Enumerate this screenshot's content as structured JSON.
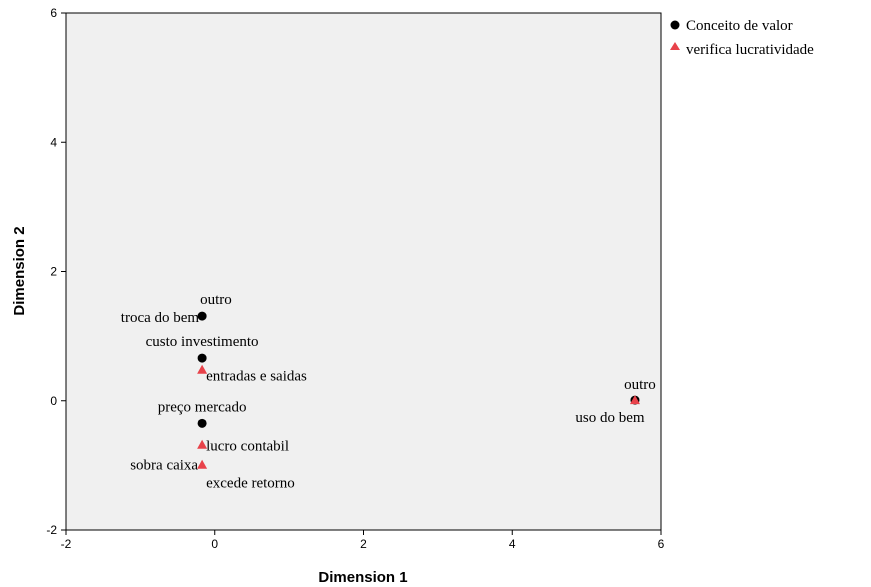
{
  "chart_data": {
    "type": "scatter",
    "xlabel": "Dimension 1",
    "ylabel": "Dimension 2",
    "xlim": [
      -2,
      6
    ],
    "ylim": [
      -2,
      6
    ],
    "xticks": [
      -2,
      0,
      2,
      4,
      6
    ],
    "yticks": [
      -2,
      0,
      2,
      4,
      6
    ],
    "grid": false,
    "legend_position": "top-right",
    "series": [
      {
        "name": "Conceito de valor",
        "marker": "circle",
        "color": "#000000",
        "points": [
          {
            "label": "outro",
            "x": -0.17,
            "y": 1.31
          },
          {
            "label": "troca do bem",
            "x": -0.17,
            "y": 1.31
          },
          {
            "label": "custo investimento",
            "x": -0.17,
            "y": 0.66
          },
          {
            "label": "preço mercado",
            "x": -0.17,
            "y": -0.35
          },
          {
            "label": "uso do bem",
            "x": 5.65,
            "y": 0.01
          }
        ]
      },
      {
        "name": "verifica lucratividade",
        "marker": "triangle",
        "color": "#e8424a",
        "points": [
          {
            "label": "entradas e saidas",
            "x": -0.17,
            "y": 0.48
          },
          {
            "label": "lucro contabil",
            "x": -0.17,
            "y": -0.68
          },
          {
            "label": "sobra caixa",
            "x": -0.17,
            "y": -0.99
          },
          {
            "label": "excede retorno",
            "x": -0.17,
            "y": -0.99
          },
          {
            "label": "outro",
            "x": 5.65,
            "y": 0.01
          }
        ]
      }
    ]
  }
}
